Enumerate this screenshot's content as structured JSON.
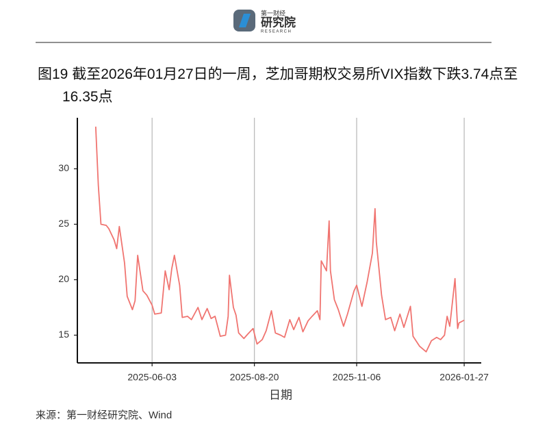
{
  "header": {
    "logo_top": "第一财经",
    "logo_main": "研究院",
    "logo_sub": "RESEARCH"
  },
  "chart_data": {
    "type": "line",
    "title": "图19  截至2026年01月27日的一周，芝加哥期权交易所VIX指数下跌3.74点至16.35点",
    "xlabel": "日期",
    "source": "来源：第一财经研究院、Wind",
    "x": [
      "2025-04-21",
      "2025-04-23",
      "2025-04-25",
      "2025-04-29",
      "2025-05-01",
      "2025-05-05",
      "2025-05-07",
      "2025-05-09",
      "2025-05-13",
      "2025-05-15",
      "2025-05-19",
      "2025-05-21",
      "2025-05-23",
      "2025-05-27",
      "2025-05-30",
      "2025-06-03",
      "2025-06-05",
      "2025-06-10",
      "2025-06-13",
      "2025-06-16",
      "2025-06-18",
      "2025-06-20",
      "2025-06-24",
      "2025-06-26",
      "2025-06-30",
      "2025-07-03",
      "2025-07-08",
      "2025-07-11",
      "2025-07-15",
      "2025-07-18",
      "2025-07-21",
      "2025-07-25",
      "2025-07-29",
      "2025-07-31",
      "2025-08-01",
      "2025-08-04",
      "2025-08-06",
      "2025-08-08",
      "2025-08-12",
      "2025-08-15",
      "2025-08-19",
      "2025-08-22",
      "2025-08-26",
      "2025-08-29",
      "2025-09-02",
      "2025-09-05",
      "2025-09-09",
      "2025-09-12",
      "2025-09-16",
      "2025-09-19",
      "2025-09-23",
      "2025-09-26",
      "2025-09-30",
      "2025-10-03",
      "2025-10-07",
      "2025-10-09",
      "2025-10-10",
      "2025-10-14",
      "2025-10-16",
      "2025-10-17",
      "2025-10-20",
      "2025-10-23",
      "2025-10-27",
      "2025-10-30",
      "2025-11-04",
      "2025-11-06",
      "2025-11-10",
      "2025-11-14",
      "2025-11-18",
      "2025-11-20",
      "2025-11-21",
      "2025-11-25",
      "2025-11-28",
      "2025-12-02",
      "2025-12-05",
      "2025-12-09",
      "2025-12-12",
      "2025-12-17",
      "2025-12-19",
      "2025-12-24",
      "2025-12-29",
      "2026-01-02",
      "2026-01-06",
      "2026-01-09",
      "2026-01-12",
      "2026-01-14",
      "2026-01-16",
      "2026-01-20",
      "2026-01-22",
      "2026-01-23",
      "2026-01-27"
    ],
    "series": [
      {
        "name": "VIX",
        "color": "#f07470",
        "values": [
          33.8,
          28.5,
          25.0,
          24.9,
          24.6,
          23.6,
          22.8,
          24.8,
          21.5,
          18.5,
          17.3,
          18.1,
          22.2,
          19.0,
          18.6,
          17.7,
          16.9,
          17.0,
          20.8,
          19.1,
          21.0,
          22.2,
          19.5,
          16.6,
          16.7,
          16.4,
          17.5,
          16.4,
          17.4,
          16.5,
          16.7,
          14.9,
          15.0,
          16.7,
          20.4,
          17.5,
          16.8,
          15.2,
          14.7,
          15.1,
          15.6,
          14.2,
          14.6,
          15.4,
          17.2,
          15.2,
          15.0,
          14.8,
          16.4,
          15.5,
          16.6,
          15.3,
          16.3,
          16.7,
          17.2,
          16.4,
          21.7,
          20.8,
          25.3,
          20.8,
          18.2,
          17.3,
          15.8,
          16.9,
          19.0,
          19.5,
          17.6,
          19.8,
          22.4,
          26.4,
          23.4,
          18.6,
          16.4,
          16.6,
          15.4,
          16.9,
          15.7,
          17.6,
          14.9,
          14.0,
          13.5,
          14.5,
          14.8,
          14.6,
          15.0,
          16.7,
          15.8,
          20.1,
          15.6,
          16.1,
          16.35
        ]
      }
    ],
    "xlim": [
      "2025-04-07",
      "2026-02-09"
    ],
    "xticks": [
      "2025-06-03",
      "2025-08-20",
      "2025-11-06",
      "2026-01-27"
    ],
    "ylim": [
      12.5,
      34.6
    ],
    "yticks": [
      15,
      20,
      25,
      30
    ],
    "grid": "x"
  }
}
